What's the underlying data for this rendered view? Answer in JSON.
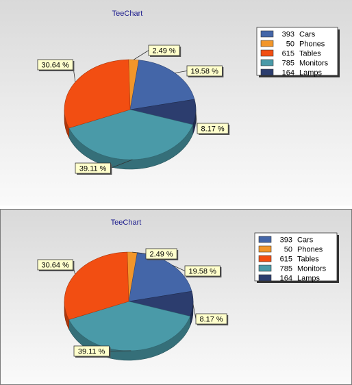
{
  "chart_data": [
    {
      "type": "pie",
      "title": "TeeChart",
      "categories": [
        "Cars",
        "Phones",
        "Tables",
        "Monitors",
        "Lamps"
      ],
      "values": [
        393,
        50,
        615,
        785,
        164
      ],
      "percent_labels": [
        "19.58 %",
        "2.49 %",
        "30.64 %",
        "39.11 %",
        "8.17 %"
      ],
      "colors": [
        "#4466a8",
        "#f2962a",
        "#f24e12",
        "#4a9aa8",
        "#2c3d6e"
      ],
      "legend_position": "top-right",
      "style": "3d"
    },
    {
      "type": "pie",
      "title": "TeeChart",
      "categories": [
        "Cars",
        "Phones",
        "Tables",
        "Monitors",
        "Lamps"
      ],
      "values": [
        393,
        50,
        615,
        785,
        164
      ],
      "percent_labels": [
        "19.58 %",
        "2.49 %",
        "30.64 %",
        "39.11 %",
        "8.17 %"
      ],
      "colors": [
        "#4466a8",
        "#f2962a",
        "#f24e12",
        "#4a9aa8",
        "#2c3d6e"
      ],
      "legend_position": "top-right",
      "style": "3d"
    }
  ]
}
